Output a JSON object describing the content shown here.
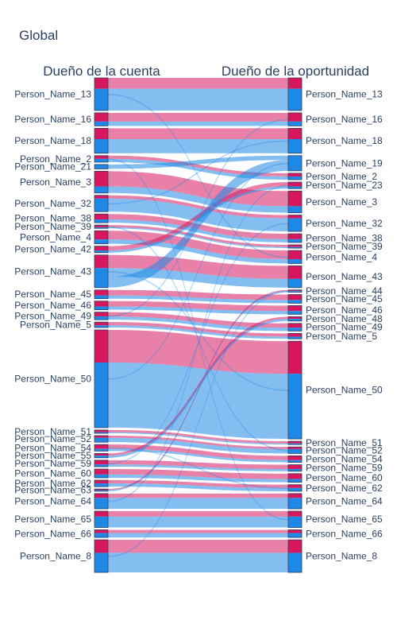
{
  "chart_data": {
    "type": "sankey",
    "title": "Global",
    "left_column_title": "Dueño de la cuenta",
    "right_column_title": "Dueño de la oportunidad",
    "colors": {
      "pink": "#d6175e",
      "blue": "#1f88e5",
      "node_border": "#2a3f5f"
    },
    "left_nodes": [
      "Person_Name_13",
      "Person_Name_16",
      "Person_Name_18",
      "Person_Name_2",
      "Person_Name_21",
      "Person_Name_3",
      "Person_Name_32",
      "Person_Name_38",
      "Person_Name_39",
      "Person_Name_4",
      "Person_Name_42",
      "Person_Name_43",
      "Person_Name_45",
      "Person_Name_46",
      "Person_Name_49",
      "Person_Name_5",
      "Person_Name_50",
      "Person_Name_51",
      "Person_Name_52",
      "Person_Name_54",
      "Person_Name_55",
      "Person_Name_59",
      "Person_Name_60",
      "Person_Name_62",
      "Person_Name_63",
      "Person_Name_64",
      "Person_Name_65",
      "Person_Name_66",
      "Person_Name_8"
    ],
    "right_nodes": [
      "Person_Name_13",
      "Person_Name_16",
      "Person_Name_18",
      "Person_Name_19",
      "Person_Name_2",
      "Person_Name_23",
      "Person_Name_3",
      "Person_Name_32",
      "Person_Name_38",
      "Person_Name_39",
      "Person_Name_4",
      "Person_Name_43",
      "Person_Name_44",
      "Person_Name_45",
      "Person_Name_46",
      "Person_Name_48",
      "Person_Name_49",
      "Person_Name_5",
      "Person_Name_50",
      "Person_Name_51",
      "Person_Name_52",
      "Person_Name_54",
      "Person_Name_59",
      "Person_Name_60",
      "Person_Name_62",
      "Person_Name_64",
      "Person_Name_65",
      "Person_Name_66",
      "Person_Name_8"
    ],
    "flows": [
      {
        "source": "Person_Name_13",
        "target": "Person_Name_13",
        "pink": 10,
        "blue": 20
      },
      {
        "source": "Person_Name_16",
        "target": "Person_Name_16",
        "pink": 8,
        "blue": 4
      },
      {
        "source": "Person_Name_18",
        "target": "Person_Name_18",
        "pink": 10,
        "blue": 13
      },
      {
        "source": "Person_Name_2",
        "target": "Person_Name_2",
        "pink": 3,
        "blue": 3
      },
      {
        "source": "Person_Name_21",
        "target": "Person_Name_19",
        "pink": 0,
        "blue": 4
      },
      {
        "source": "Person_Name_3",
        "target": "Person_Name_3",
        "pink": 14,
        "blue": 6
      },
      {
        "source": "Person_Name_32",
        "target": "Person_Name_32",
        "pink": 3,
        "blue": 12
      },
      {
        "source": "Person_Name_38",
        "target": "Person_Name_38",
        "pink": 5,
        "blue": 3
      },
      {
        "source": "Person_Name_39",
        "target": "Person_Name_39",
        "pink": 2,
        "blue": 1
      },
      {
        "source": "Person_Name_4",
        "target": "Person_Name_4",
        "pink": 8,
        "blue": 4
      },
      {
        "source": "Person_Name_42",
        "target": "Person_Name_23",
        "pink": 4,
        "blue": 2
      },
      {
        "source": "Person_Name_43",
        "target": "Person_Name_43",
        "pink": 12,
        "blue": 8
      },
      {
        "source": "Person_Name_43",
        "target": "Person_Name_19",
        "pink": 0,
        "blue": 10
      },
      {
        "source": "Person_Name_45",
        "target": "Person_Name_45",
        "pink": 5,
        "blue": 3
      },
      {
        "source": "Person_Name_46",
        "target": "Person_Name_46",
        "pink": 5,
        "blue": 3
      },
      {
        "source": "Person_Name_49",
        "target": "Person_Name_49",
        "pink": 4,
        "blue": 3
      },
      {
        "source": "Person_Name_5",
        "target": "Person_Name_5",
        "pink": 3,
        "blue": 2
      },
      {
        "source": "Person_Name_50",
        "target": "Person_Name_50",
        "pink": 30,
        "blue": 60
      },
      {
        "source": "Person_Name_51",
        "target": "Person_Name_51",
        "pink": 2,
        "blue": 1
      },
      {
        "source": "Person_Name_52",
        "target": "Person_Name_52",
        "pink": 2,
        "blue": 4
      },
      {
        "source": "Person_Name_54",
        "target": "Person_Name_54",
        "pink": 4,
        "blue": 2
      },
      {
        "source": "Person_Name_55",
        "target": "Person_Name_48",
        "pink": 2,
        "blue": 2
      },
      {
        "source": "Person_Name_59",
        "target": "Person_Name_59",
        "pink": 4,
        "blue": 2
      },
      {
        "source": "Person_Name_60",
        "target": "Person_Name_60",
        "pink": 5,
        "blue": 3
      },
      {
        "source": "Person_Name_62",
        "target": "Person_Name_62",
        "pink": 3,
        "blue": 3
      },
      {
        "source": "Person_Name_63",
        "target": "Person_Name_44",
        "pink": 1,
        "blue": 1
      },
      {
        "source": "Person_Name_64",
        "target": "Person_Name_64",
        "pink": 4,
        "blue": 10
      },
      {
        "source": "Person_Name_65",
        "target": "Person_Name_65",
        "pink": 5,
        "blue": 10
      },
      {
        "source": "Person_Name_66",
        "target": "Person_Name_66",
        "pink": 3,
        "blue": 4
      },
      {
        "source": "Person_Name_8",
        "target": "Person_Name_8",
        "pink": 12,
        "blue": 18
      }
    ]
  }
}
